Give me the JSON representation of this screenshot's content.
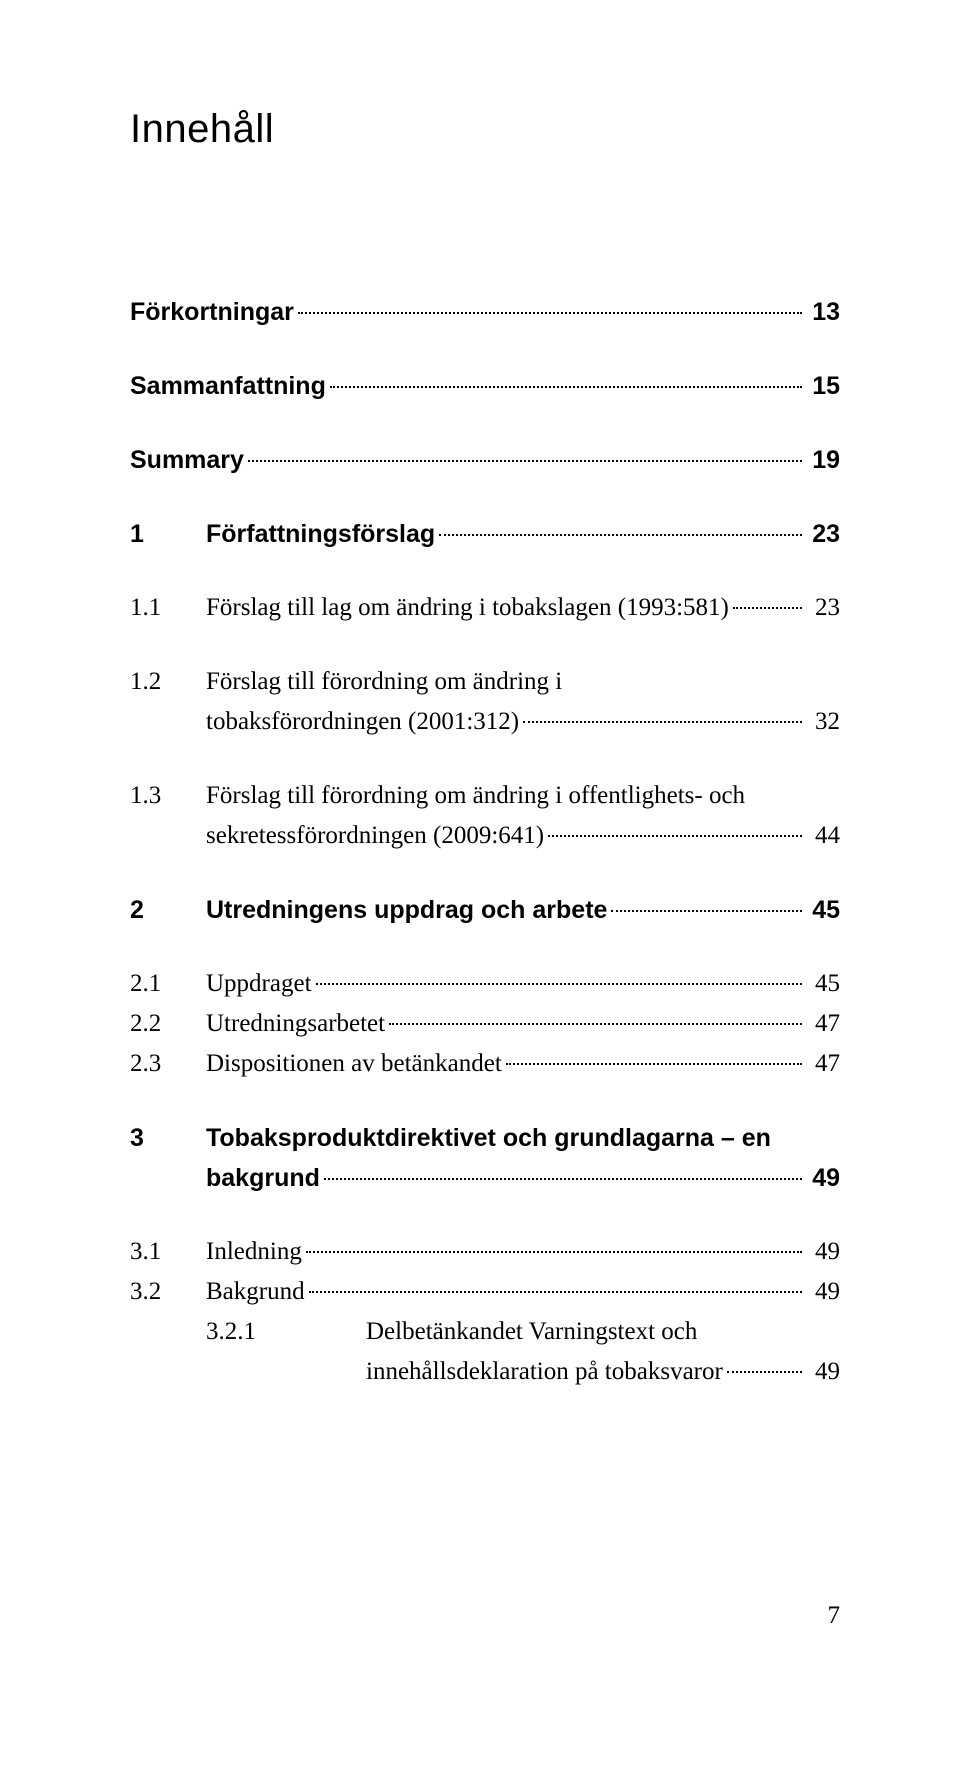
{
  "doc": {
    "title": "Innehåll",
    "footer_page": "7"
  },
  "toc": {
    "forkortningar": {
      "text": "Förkortningar",
      "page": "13"
    },
    "sammanfattning": {
      "text": "Sammanfattning",
      "page": "15"
    },
    "summary": {
      "text": "Summary",
      "page": "19"
    },
    "s1": {
      "num": "1",
      "text": "Författningsförslag",
      "page": "23"
    },
    "s1_1": {
      "num": "1.1",
      "text": "Förslag till lag om ändring i tobakslagen (1993:581)",
      "page": "23"
    },
    "s1_2": {
      "num": "1.2",
      "text_a": "Förslag till förordning om ändring i",
      "text_b": "tobaksförordningen (2001:312)",
      "page": "32"
    },
    "s1_3": {
      "num": "1.3",
      "text_a": "Förslag till förordning om ändring i offentlighets- och",
      "text_b": "sekretessförordningen (2009:641)",
      "page": "44"
    },
    "s2": {
      "num": "2",
      "text": "Utredningens uppdrag och arbete",
      "page": "45"
    },
    "s2_1": {
      "num": "2.1",
      "text": "Uppdraget",
      "page": "45"
    },
    "s2_2": {
      "num": "2.2",
      "text": "Utredningsarbetet",
      "page": "47"
    },
    "s2_3": {
      "num": "2.3",
      "text": "Dispositionen av betänkandet",
      "page": "47"
    },
    "s3": {
      "num": "3",
      "text_a": "Tobaksproduktdirektivet och grundlagarna – en",
      "text_b": "bakgrund",
      "page": "49"
    },
    "s3_1": {
      "num": "3.1",
      "text": "Inledning",
      "page": "49"
    },
    "s3_2": {
      "num": "3.2",
      "text": "Bakgrund",
      "page": "49"
    },
    "s3_2_1": {
      "num": "3.2.1",
      "text_a": "Delbetänkandet Varningstext och",
      "text_b": "innehållsdeklaration på tobaksvaror",
      "page": "49"
    }
  }
}
